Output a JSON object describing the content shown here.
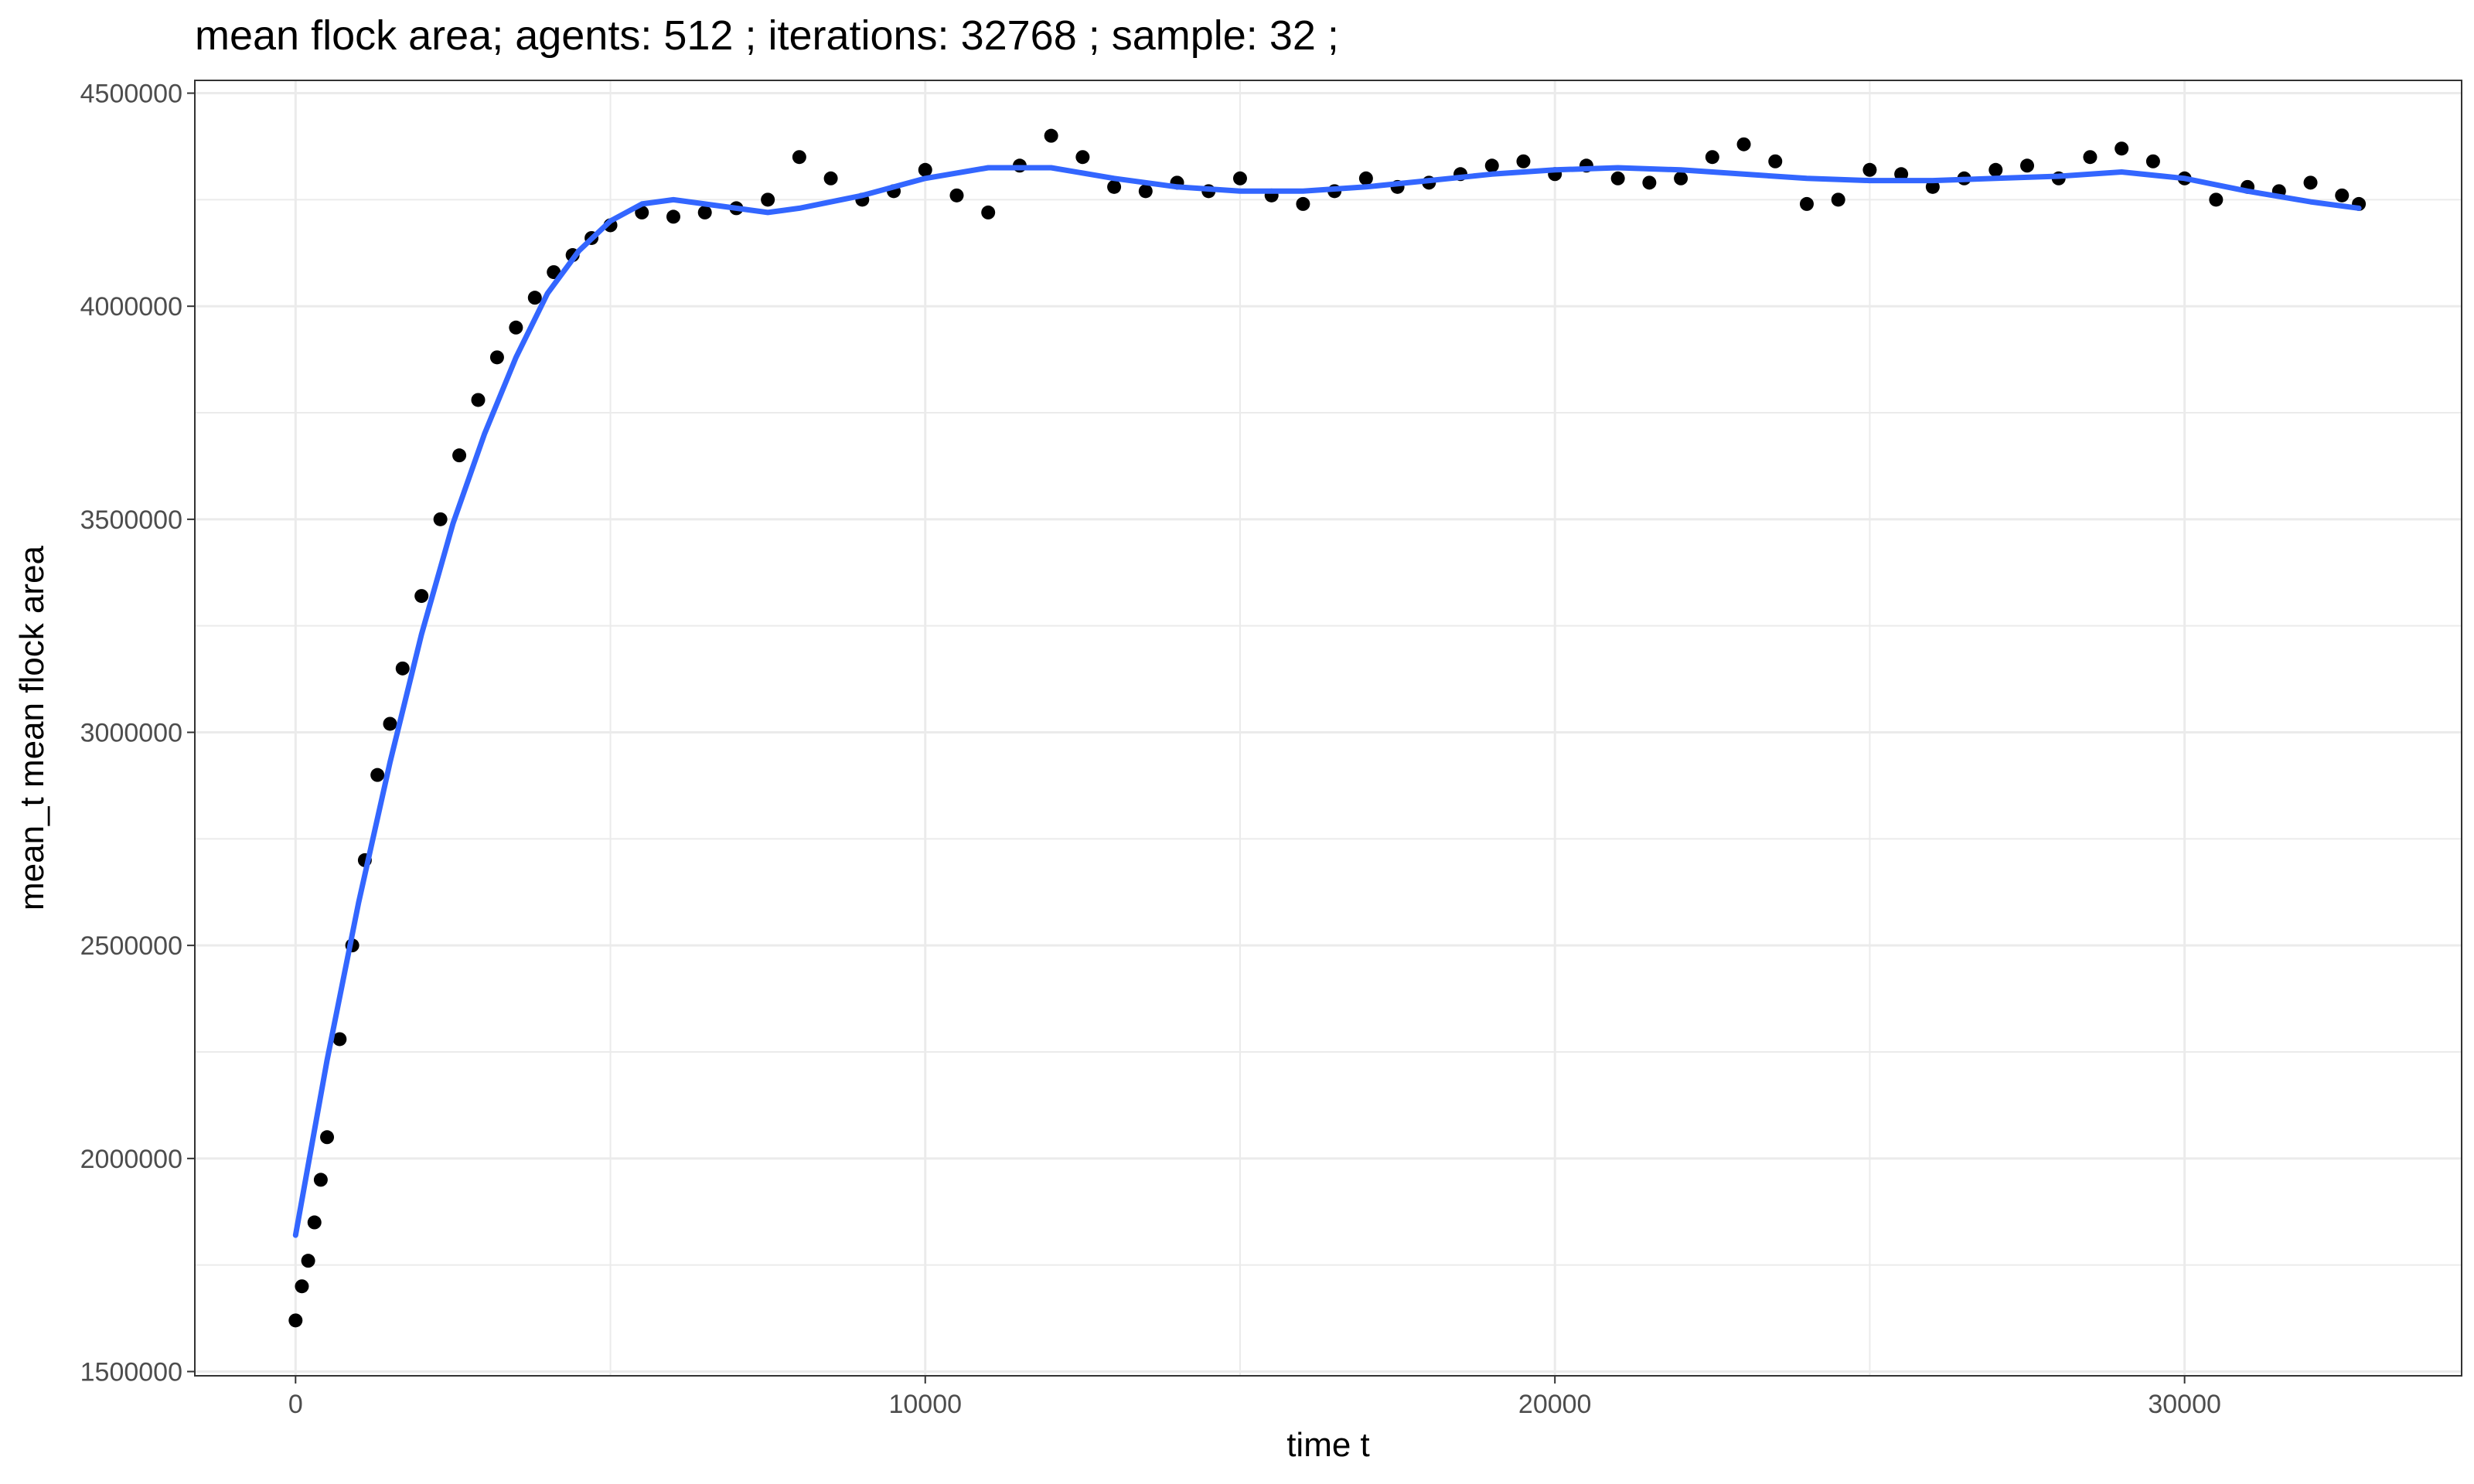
{
  "chart_data": {
    "type": "scatter",
    "title": "mean flock area; agents: 512 ; iterations: 32768 ; sample: 32 ;",
    "xlabel": "time t",
    "ylabel": "mean_t mean flock area",
    "xlim": [
      -1600,
      34400
    ],
    "ylim": [
      1490000,
      4530000
    ],
    "x_ticks": [
      0,
      10000,
      20000,
      30000
    ],
    "x_tick_labels": [
      "0",
      "10000",
      "20000",
      "30000"
    ],
    "y_ticks": [
      1500000,
      2000000,
      2500000,
      3000000,
      3500000,
      4000000,
      4500000
    ],
    "y_tick_labels": [
      "1500000",
      "2000000",
      "2500000",
      "3000000",
      "3500000",
      "4000000",
      "4500000"
    ],
    "grid": true,
    "theme": "bw",
    "colors": {
      "points": "#000000",
      "smooth": "#3366ff",
      "grid": "#ebebeb",
      "panel_border": "#333333"
    },
    "series": [
      {
        "kind": "points",
        "x": [
          0,
          100,
          200,
          300,
          400,
          500,
          700,
          900,
          1100,
          1300,
          1500,
          1700,
          2000,
          2300,
          2600,
          2900,
          3200,
          3500,
          3800,
          4100,
          4400,
          4700,
          5000,
          5500,
          6000,
          6500,
          7000,
          7500,
          8000,
          8500,
          9000,
          9500,
          10000,
          10500,
          11000,
          11500,
          12000,
          12500,
          13000,
          13500,
          14000,
          14500,
          15000,
          15500,
          16000,
          16500,
          17000,
          17500,
          18000,
          18500,
          19000,
          19500,
          20000,
          20500,
          21000,
          21500,
          22000,
          22500,
          23000,
          23500,
          24000,
          24500,
          25000,
          25500,
          26000,
          26500,
          27000,
          27500,
          28000,
          28500,
          29000,
          29500,
          30000,
          30500,
          31000,
          31500,
          32000,
          32500,
          32768
        ],
        "y": [
          1620000,
          1700000,
          1760000,
          1850000,
          1950000,
          2050000,
          2280000,
          2500000,
          2700000,
          2900000,
          3020000,
          3150000,
          3320000,
          3500000,
          3650000,
          3780000,
          3880000,
          3950000,
          4020000,
          4080000,
          4120000,
          4160000,
          4190000,
          4220000,
          4210000,
          4220000,
          4230000,
          4250000,
          4350000,
          4300000,
          4250000,
          4270000,
          4320000,
          4260000,
          4220000,
          4330000,
          4400000,
          4350000,
          4280000,
          4270000,
          4290000,
          4270000,
          4300000,
          4260000,
          4240000,
          4270000,
          4300000,
          4280000,
          4290000,
          4310000,
          4330000,
          4340000,
          4310000,
          4330000,
          4300000,
          4290000,
          4300000,
          4350000,
          4380000,
          4340000,
          4240000,
          4250000,
          4320000,
          4310000,
          4280000,
          4300000,
          4320000,
          4330000,
          4300000,
          4350000,
          4370000,
          4340000,
          4300000,
          4250000,
          4280000,
          4270000,
          4290000,
          4260000,
          4240000
        ]
      },
      {
        "kind": "smooth",
        "x": [
          0,
          500,
          1000,
          1500,
          2000,
          2500,
          3000,
          3500,
          4000,
          4500,
          5000,
          5500,
          6000,
          6500,
          7000,
          7500,
          8000,
          9000,
          10000,
          11000,
          12000,
          13000,
          14000,
          15000,
          16000,
          17000,
          18000,
          19000,
          20000,
          21000,
          22000,
          23000,
          24000,
          25000,
          26000,
          27000,
          28000,
          29000,
          30000,
          31000,
          32000,
          32768
        ],
        "y": [
          1820000,
          2230000,
          2600000,
          2930000,
          3230000,
          3490000,
          3700000,
          3880000,
          4030000,
          4130000,
          4200000,
          4240000,
          4250000,
          4240000,
          4230000,
          4220000,
          4230000,
          4260000,
          4300000,
          4325000,
          4325000,
          4300000,
          4280000,
          4270000,
          4270000,
          4280000,
          4295000,
          4310000,
          4320000,
          4325000,
          4320000,
          4310000,
          4300000,
          4295000,
          4295000,
          4300000,
          4305000,
          4315000,
          4300000,
          4270000,
          4245000,
          4230000
        ]
      }
    ]
  }
}
